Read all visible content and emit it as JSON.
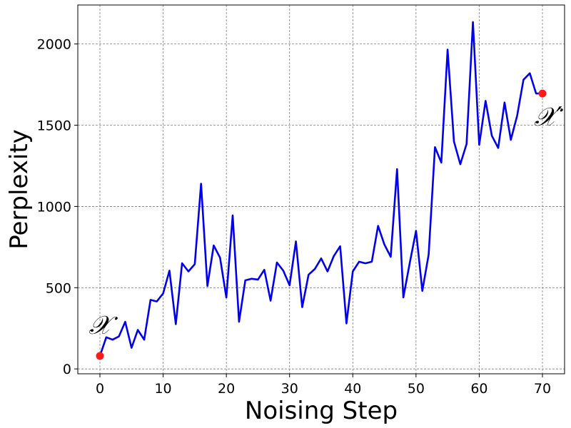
{
  "chart_data": {
    "type": "line",
    "title": "",
    "xlabel": "Noising Step",
    "ylabel": "Perplexity",
    "xlim": [
      -3.5,
      73.5
    ],
    "ylim": [
      -30,
      2240
    ],
    "xticks": [
      0,
      10,
      20,
      30,
      40,
      50,
      60,
      70
    ],
    "yticks": [
      0,
      500,
      1000,
      1500,
      2000
    ],
    "grid": true,
    "legend": "none",
    "colors": {
      "line": "#0000ee",
      "marker": "#ff1a1a",
      "grid": "#808080"
    },
    "series": [
      {
        "x": [
          0,
          1,
          2,
          3,
          4,
          5,
          6,
          7,
          8,
          9,
          10,
          11,
          12,
          13,
          14,
          15,
          16,
          17,
          18,
          19,
          20,
          21,
          22,
          23,
          24,
          25,
          26,
          27,
          28,
          29,
          30,
          31,
          32,
          33,
          34,
          35,
          36,
          37,
          38,
          39,
          40,
          41,
          42,
          43,
          44,
          45,
          46,
          47,
          48,
          49,
          50,
          51,
          52,
          53,
          54,
          55,
          56,
          57,
          58,
          59,
          60,
          61,
          62,
          63,
          64,
          65,
          66,
          67,
          68,
          69,
          70
        ],
        "y": [
          80,
          195,
          180,
          200,
          290,
          130,
          240,
          180,
          425,
          415,
          465,
          605,
          275,
          650,
          600,
          645,
          1140,
          510,
          760,
          685,
          440,
          945,
          290,
          545,
          555,
          550,
          610,
          420,
          655,
          605,
          515,
          785,
          380,
          580,
          615,
          680,
          600,
          695,
          755,
          280,
          600,
          660,
          650,
          660,
          880,
          765,
          690,
          1230,
          440,
          650,
          850,
          480,
          705,
          1365,
          1270,
          1965,
          1400,
          1260,
          1385,
          2135,
          1380,
          1650,
          1435,
          1360,
          1640,
          1410,
          1560,
          1780,
          1820,
          1695,
          1695
        ]
      }
    ],
    "annotations": [
      {
        "text": "𝒳",
        "x": 0,
        "y": 80
      },
      {
        "text": "𝒳′",
        "x": 70,
        "y": 1695
      }
    ]
  }
}
